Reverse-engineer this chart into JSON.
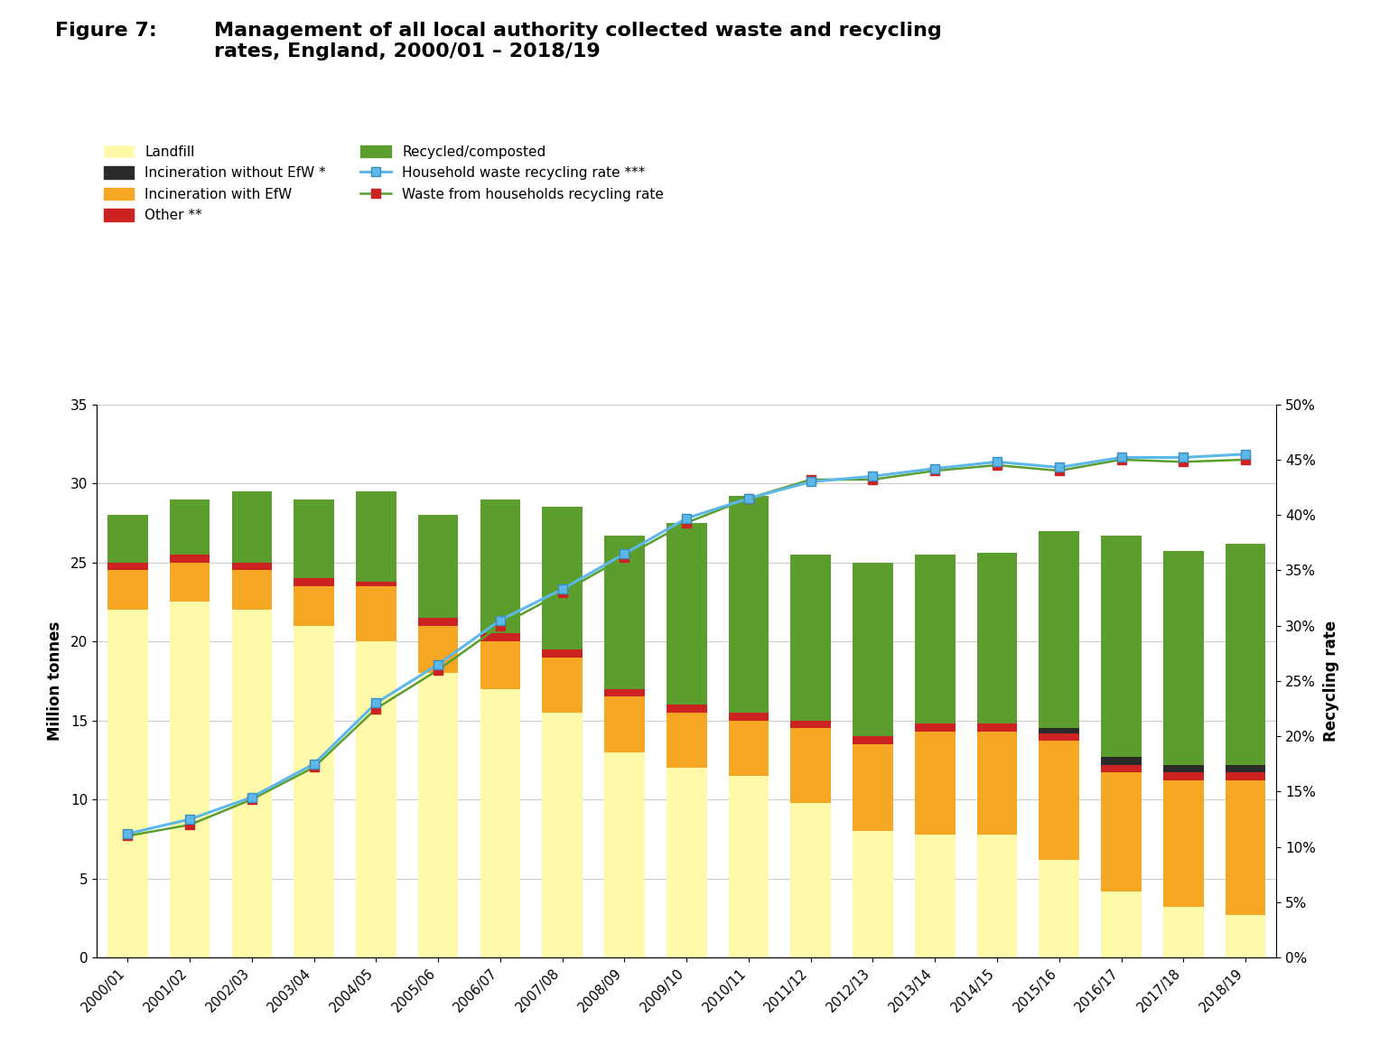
{
  "years": [
    "2000/01",
    "2001/02",
    "2002/03",
    "2003/04",
    "2004/05",
    "2005/06",
    "2006/07",
    "2007/08",
    "2008/09",
    "2009/10",
    "2010/11",
    "2011/12",
    "2012/13",
    "2013/14",
    "2014/15",
    "2015/16",
    "2016/17",
    "2017/18",
    "2018/19"
  ],
  "landfill": [
    22.0,
    22.5,
    22.0,
    21.0,
    20.0,
    18.0,
    17.0,
    15.5,
    13.0,
    12.0,
    11.5,
    9.8,
    8.0,
    7.8,
    7.8,
    6.2,
    4.2,
    3.2,
    2.7
  ],
  "incineration_efw": [
    2.5,
    2.5,
    2.5,
    2.5,
    3.5,
    3.0,
    3.0,
    3.5,
    3.5,
    3.5,
    3.5,
    4.7,
    5.5,
    6.5,
    6.5,
    7.5,
    7.5,
    8.0,
    8.5
  ],
  "other": [
    0.5,
    0.5,
    0.5,
    0.5,
    0.3,
    0.5,
    0.5,
    0.5,
    0.5,
    0.5,
    0.5,
    0.5,
    0.5,
    0.5,
    0.5,
    0.5,
    0.5,
    0.5,
    0.5
  ],
  "incineration_no_efw": [
    0.0,
    0.0,
    0.0,
    0.0,
    0.0,
    0.0,
    0.0,
    0.0,
    0.0,
    0.0,
    0.0,
    0.0,
    0.0,
    0.0,
    0.0,
    0.3,
    0.5,
    0.5,
    0.5
  ],
  "recycled": [
    3.0,
    3.5,
    4.5,
    5.0,
    5.7,
    6.5,
    8.5,
    9.0,
    9.7,
    11.5,
    13.7,
    10.5,
    11.0,
    10.7,
    10.8,
    12.5,
    14.0,
    13.5,
    14.0
  ],
  "hw_rate": [
    0.112,
    0.125,
    0.145,
    0.175,
    0.23,
    0.265,
    0.305,
    0.333,
    0.365,
    0.397,
    0.415,
    0.43,
    0.435,
    0.442,
    0.448,
    0.443,
    0.452,
    0.452,
    0.455
  ],
  "wfh_rate": [
    0.11,
    0.12,
    0.143,
    0.172,
    0.225,
    0.26,
    0.3,
    0.33,
    0.362,
    0.393,
    0.415,
    0.432,
    0.432,
    0.44,
    0.445,
    0.44,
    0.45,
    0.448,
    0.45
  ],
  "colors": {
    "landfill": "#FFFAAA",
    "incineration_efw": "#F5A623",
    "other": "#CC2222",
    "incineration_no_efw": "#2B2B2B",
    "recycled": "#5C9E2E",
    "hw_line": "#5BB8E8",
    "wfh_line": "#5C9E2E",
    "wfh_marker": "#CC2222"
  },
  "title_prefix": "Figure 7:",
  "title_main": "Management of all local authority collected waste and recycling\nrates, England, 2000/01 – 2018/19",
  "ylabel_left": "Million tonnes",
  "ylabel_right": "Recycling rate"
}
